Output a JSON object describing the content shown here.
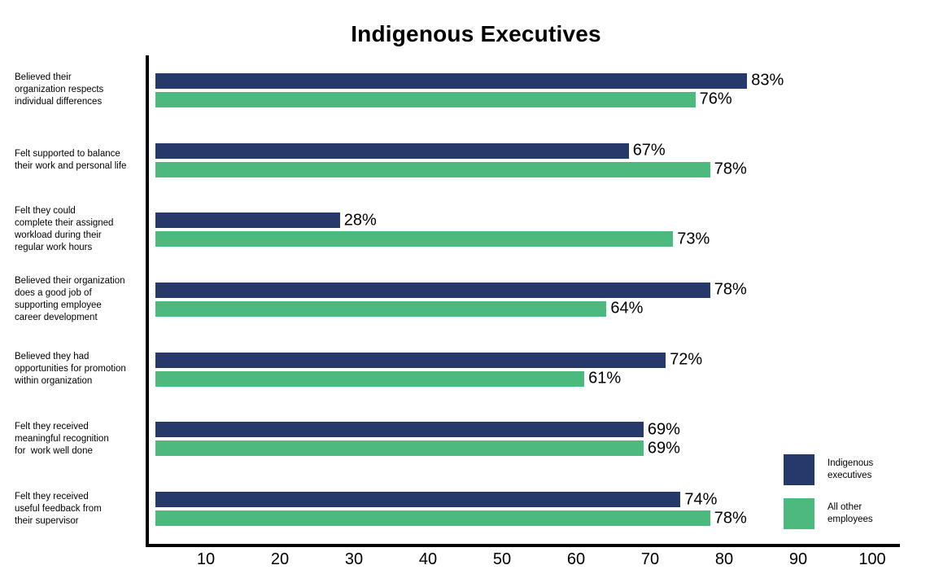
{
  "title": "Indigenous Executives",
  "colors": {
    "navy": "#27386B",
    "green": "#4CB97E"
  },
  "legend": [
    {
      "label": "Indigenous executives",
      "color": "#27386B",
      "key": "indigenous-executives"
    },
    {
      "label": "All other employees",
      "color": "#4CB97E",
      "key": "all-other-employees"
    }
  ],
  "chart_data": {
    "type": "bar",
    "orientation": "horizontal",
    "title": "Indigenous Executives",
    "categories": [
      "Believed their\norganization respects\nindividual differences",
      "Felt supported to balance\ntheir work and personal life",
      "Felt they could\ncomplete their assigned\nworkload during their\nregular work hours",
      "Believed their organization\ndoes a good job of\nsupporting employee\ncareer development",
      "Believed they had\nopportunities for promotion\nwithin organization",
      "Felt they received\nmeaningful recognition\nfor  work well done",
      "Felt they received\nuseful feedback from\ntheir supervisor"
    ],
    "series": [
      {
        "name": "Indigenous executives",
        "color": "#27386B",
        "values": [
          83,
          67,
          28,
          78,
          72,
          69,
          74
        ]
      },
      {
        "name": "All other employees",
        "color": "#4CB97E",
        "values": [
          76,
          78,
          73,
          64,
          61,
          69,
          78
        ]
      }
    ],
    "value_suffix": "%",
    "xlim": [
      0,
      100
    ],
    "x_ticks": [
      10,
      20,
      30,
      40,
      50,
      60,
      70,
      80,
      90,
      100
    ],
    "grid": false,
    "legend_position": "bottom-right"
  }
}
